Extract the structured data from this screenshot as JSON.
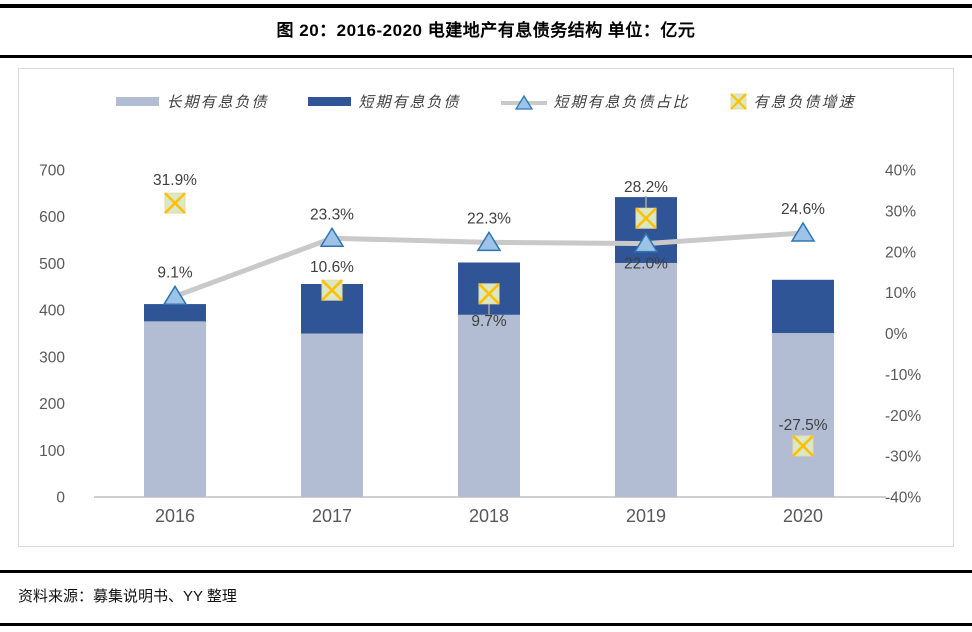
{
  "title": "图 20：2016-2020 电建地产有息债务结构 单位：亿元",
  "source": "资料来源：募集说明书、YY 整理",
  "legend": {
    "items": [
      {
        "label": "长期有息负债",
        "marker": "bar-swatch",
        "color": "#b2bcd2"
      },
      {
        "label": "短期有息负债",
        "marker": "bar-swatch",
        "color": "#2f5597"
      },
      {
        "label": "短期有息负债占比",
        "marker": "line-triangle",
        "color": "#c9c9c9"
      },
      {
        "label": "有息负债增速",
        "marker": "x-square",
        "color": "#ffc000"
      }
    ]
  },
  "chart_data": {
    "type": "bar",
    "subtype": "stacked-bars-with-lines",
    "categories": [
      "2016",
      "2017",
      "2018",
      "2019",
      "2020"
    ],
    "series": [
      {
        "name": "长期有息负债",
        "type": "bar",
        "axis": "left",
        "values": [
          376,
          350,
          390,
          501,
          351
        ]
      },
      {
        "name": "短期有息负债",
        "type": "bar",
        "axis": "left",
        "values": [
          37,
          106,
          112,
          141,
          114
        ]
      },
      {
        "name": "短期有息负债占比",
        "type": "line",
        "axis": "right",
        "values": [
          9.1,
          23.3,
          22.3,
          22.0,
          24.6
        ],
        "labels": [
          "9.1%",
          "23.3%",
          "22.3%",
          "22.0%",
          "24.6%"
        ],
        "label_dy": [
          -19,
          -19,
          -19,
          25,
          -19
        ]
      },
      {
        "name": "有息负债增速",
        "type": "scatter",
        "axis": "right",
        "values": [
          31.9,
          10.6,
          9.7,
          28.2,
          -27.5
        ],
        "labels": [
          "31.9%",
          "10.6%",
          "9.7%",
          "28.2%",
          "-27.5%"
        ],
        "label_dy": [
          -18,
          -18,
          32,
          -26,
          -16
        ],
        "leader": [
          false,
          false,
          true,
          true,
          false
        ]
      }
    ],
    "left_axis": {
      "min": 0,
      "max": 700,
      "step": 100,
      "ticks": [
        "700",
        "600",
        "500",
        "400",
        "300",
        "200",
        "100",
        "0"
      ]
    },
    "right_axis": {
      "min": -40,
      "max": 40,
      "step": 10,
      "ticks": [
        "40%",
        "30%",
        "20%",
        "10%",
        "0%",
        "-10%",
        "-20%",
        "-30%",
        "-40%"
      ]
    },
    "grid": false,
    "legend_position": "top",
    "title": "图 20：2016-2020 电建地产有息债务结构 单位：亿元",
    "ylabel_left": "亿元",
    "ylabel_right": "%"
  },
  "colors": {
    "bar_long": "#b2bcd2",
    "bar_short": "#2f5597",
    "ratio_line": "#c9c9c9",
    "triangle_fill": "#9dc3e6",
    "triangle_stroke": "#2e75b6",
    "growth_fill": "#d9e8c6",
    "growth_x": "#ffc000",
    "tick_text": "#595959",
    "data_label": "#3f3f3f",
    "axis_line": "#bfbfbf",
    "leader_line": "#a6a6a6",
    "panel_border": "#d9d9d9",
    "rule": "#000000"
  }
}
